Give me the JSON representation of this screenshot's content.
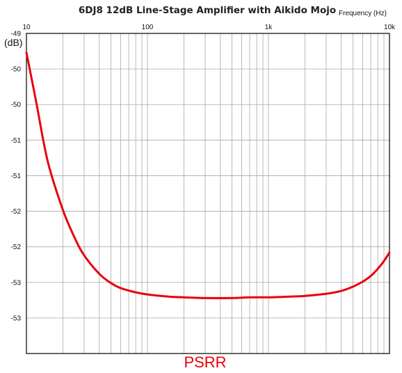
{
  "chart_data": {
    "type": "line",
    "title": "6DJ8 12dB Line-Stage Amplifier with Aikido Mojo",
    "xlabel": "Frequency   (Hz)",
    "ylabel": "(dB)",
    "x_scale": "log",
    "xlim": [
      10,
      10000
    ],
    "ylim": [
      -53.5,
      -49
    ],
    "grid": true,
    "x_tick_labels": [
      {
        "value": 10,
        "label": "10"
      },
      {
        "value": 100,
        "label": "100"
      },
      {
        "value": 1000,
        "label": "1k"
      },
      {
        "value": 10000,
        "label": "10k"
      }
    ],
    "y_tick_labels": [
      {
        "value": -49,
        "label": "-49"
      },
      {
        "value": -49.5,
        "label": "-50"
      },
      {
        "value": -50,
        "label": "-50"
      },
      {
        "value": -50.5,
        "label": "-51"
      },
      {
        "value": -51,
        "label": "-51"
      },
      {
        "value": -51.5,
        "label": "-52"
      },
      {
        "value": -52,
        "label": "-52"
      },
      {
        "value": -52.5,
        "label": "-53"
      },
      {
        "value": -53,
        "label": "-53"
      }
    ],
    "series": [
      {
        "name": "PSRR",
        "color": "#e8000b",
        "x": [
          10,
          12,
          15,
          20,
          25,
          30,
          40,
          50,
          60,
          80,
          100,
          150,
          200,
          300,
          500,
          700,
          1000,
          1500,
          2000,
          3000,
          4000,
          5000,
          6000,
          7000,
          8000,
          9000,
          10000
        ],
        "y": [
          -49.27,
          -49.95,
          -50.8,
          -51.48,
          -51.87,
          -52.12,
          -52.38,
          -52.51,
          -52.58,
          -52.64,
          -52.67,
          -52.7,
          -52.71,
          -52.72,
          -52.72,
          -52.71,
          -52.71,
          -52.7,
          -52.69,
          -52.66,
          -52.62,
          -52.56,
          -52.49,
          -52.41,
          -52.31,
          -52.2,
          -52.08
        ]
      }
    ]
  }
}
